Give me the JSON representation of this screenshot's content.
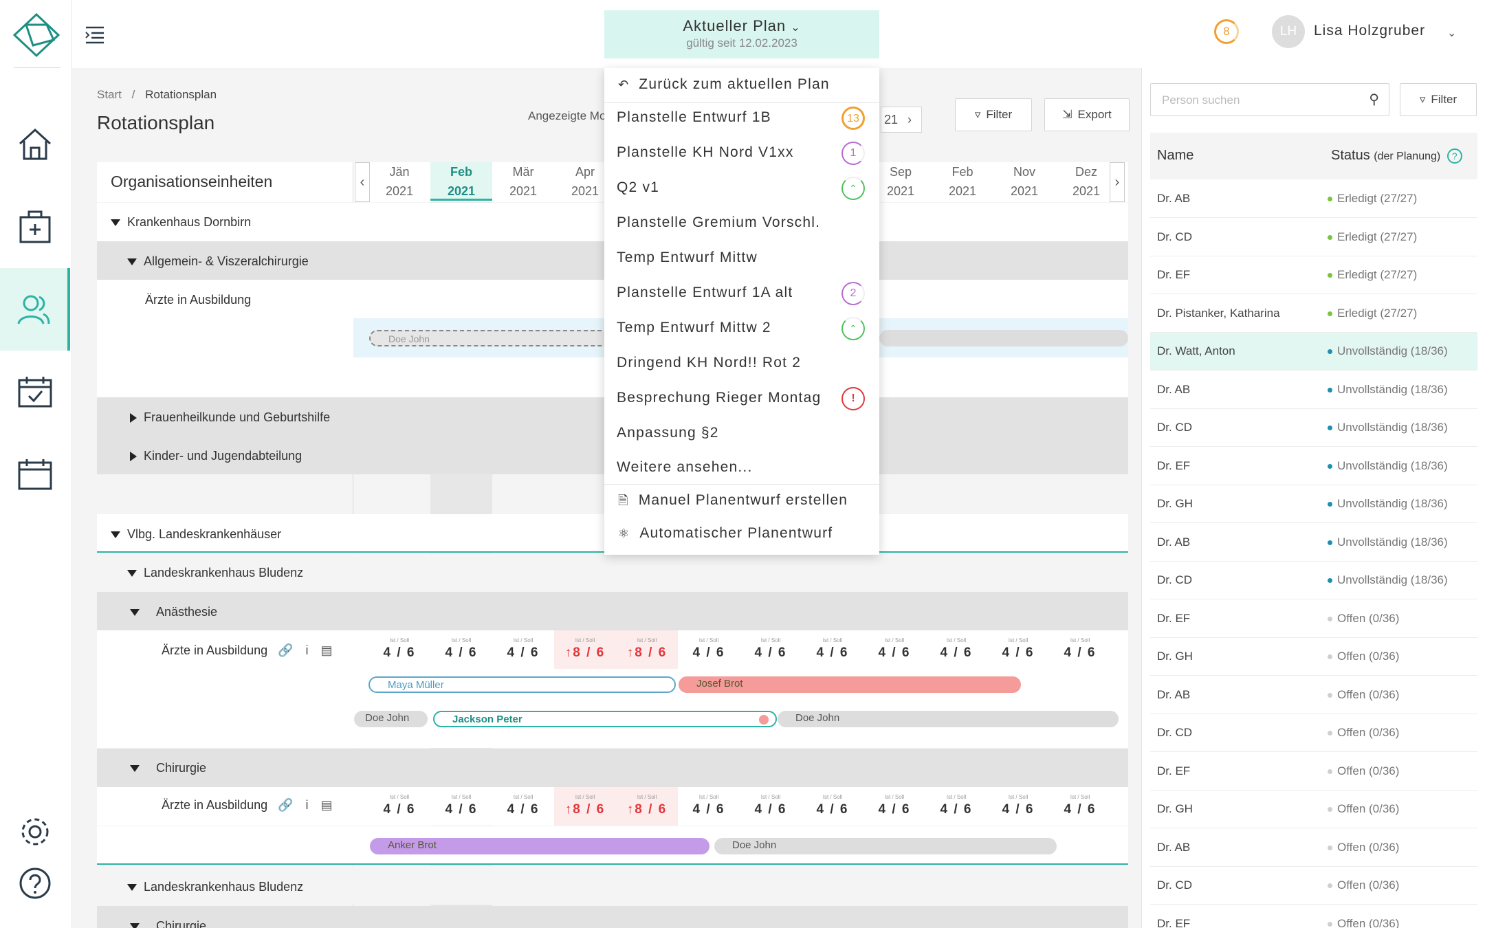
{
  "topbar": {
    "plan_title": "Aktueller Plan",
    "plan_sub": "gültig seit 12.02.2023",
    "notif_count": "8",
    "avatar": "LH",
    "user": "Lisa Holzgruber"
  },
  "dropdown": {
    "back": "Zurück zum aktuellen Plan",
    "items": [
      {
        "label": "Planstelle Entwurf 1B",
        "badge": "13",
        "badge_type": "orange"
      },
      {
        "label": "Planstelle KH Nord V1xx",
        "badge": "1",
        "badge_type": "purple"
      },
      {
        "label": "Q2 v1",
        "badge": "",
        "badge_type": "green"
      },
      {
        "label": "Planstelle Gremium Vorschl.",
        "badge": "",
        "badge_type": "none"
      },
      {
        "label": "Temp Entwurf Mittw",
        "badge": "",
        "badge_type": "none"
      },
      {
        "label": "Planstelle Entwurf 1A alt",
        "badge": "2",
        "badge_type": "purple"
      },
      {
        "label": "Temp Entwurf Mittw 2",
        "badge": "",
        "badge_type": "green"
      },
      {
        "label": "Dringend KH Nord!! Rot 2",
        "badge": "",
        "badge_type": "none"
      },
      {
        "label": "Besprechung Rieger Montag",
        "badge": "!",
        "badge_type": "red"
      },
      {
        "label": "Anpassung §2",
        "badge": "",
        "badge_type": "none"
      }
    ],
    "more": "Weitere ansehen...",
    "manual": "Manuel Planentwurf erstellen",
    "auto": "Automatischer Planentwurf"
  },
  "main": {
    "breadcrumb_start": "Start",
    "breadcrumb_sep": "/",
    "breadcrumb_current": "Rotationsplan",
    "title": "Rotationsplan",
    "shown_label": "Angezeigte Mo",
    "date_fragment": "21",
    "filter": "Filter",
    "export": "Export",
    "org_header": "Organisationseinheiten",
    "months": [
      {
        "m": "Jän",
        "y": "2021"
      },
      {
        "m": "Feb",
        "y": "2021"
      },
      {
        "m": "Mär",
        "y": "2021"
      },
      {
        "m": "Apr",
        "y": "2021"
      },
      {
        "m": "Sep",
        "y": "2021"
      },
      {
        "m": "Feb",
        "y": "2021"
      },
      {
        "m": "Nov",
        "y": "2021"
      },
      {
        "m": "Dez",
        "y": "2021"
      }
    ],
    "tree": {
      "kh_dornbirn": "Krankenhaus Dornbirn",
      "allg": "Allgemein- & Viszeralchirurgie",
      "aerzte": "Ärzte in Ausbildung",
      "frauen": "Frauenheilkunde und Geburtshilfe",
      "kinder": "Kinder- und Jugendabteilung",
      "vlbg": "Vlbg. Landeskrankenhäuser",
      "bludenz": "Landeskrankenhaus Bludenz",
      "anaest": "Anästhesie",
      "aerzte2": "Ärzte in Ausbildung",
      "chir": "Chirurgie",
      "aerzte3": "Ärzte in Ausbildung",
      "bludenz2": "Landeskrankenhaus Bludenz",
      "chir2": "Chirurgie"
    },
    "istsoll": "Ist / Soll",
    "cells": [
      "4 / 6",
      "4 / 6",
      "4 / 6",
      "8 / 6",
      "8 / 6",
      "4 / 6",
      "4 / 6",
      "4 / 6",
      "4 / 6",
      "4 / 6",
      "4 / 6",
      "4 / 6"
    ],
    "bars": {
      "doe1": "Doe John",
      "maya": "Maya Müller",
      "josef": "Josef Brot",
      "doe2": "Doe John",
      "jackson": "Jackson Peter",
      "doe3": "Doe John",
      "anker": "Anker Brot",
      "doe4": "Doe John"
    }
  },
  "right": {
    "search_placeholder": "Person suchen",
    "filter": "Filter",
    "col_name": "Name",
    "col_status": "Status",
    "col_status_sub": "(der Planung)",
    "rows": [
      {
        "name": "Dr. AB",
        "status": "Erledigt (27/27)",
        "kind": "done"
      },
      {
        "name": "Dr. CD",
        "status": "Erledigt (27/27)",
        "kind": "done"
      },
      {
        "name": "Dr. EF",
        "status": "Erledigt (27/27)",
        "kind": "done"
      },
      {
        "name": "Dr. Pistanker, Katharina",
        "status": "Erledigt (27/27)",
        "kind": "done"
      },
      {
        "name": "Dr. Watt, Anton",
        "status": "Unvollständig (18/36)",
        "kind": "partial"
      },
      {
        "name": "Dr. AB",
        "status": "Unvollständig (18/36)",
        "kind": "partial"
      },
      {
        "name": "Dr. CD",
        "status": "Unvollständig (18/36)",
        "kind": "partial"
      },
      {
        "name": "Dr. EF",
        "status": "Unvollständig (18/36)",
        "kind": "partial"
      },
      {
        "name": "Dr. GH",
        "status": "Unvollständig (18/36)",
        "kind": "partial"
      },
      {
        "name": "Dr. AB",
        "status": "Unvollständig (18/36)",
        "kind": "partial"
      },
      {
        "name": "Dr. CD",
        "status": "Unvollständig (18/36)",
        "kind": "partial"
      },
      {
        "name": "Dr. EF",
        "status": "Offen (0/36)",
        "kind": "open"
      },
      {
        "name": "Dr. GH",
        "status": "Offen (0/36)",
        "kind": "open"
      },
      {
        "name": "Dr. AB",
        "status": "Offen (0/36)",
        "kind": "open"
      },
      {
        "name": "Dr. CD",
        "status": "Offen (0/36)",
        "kind": "open"
      },
      {
        "name": "Dr. EF",
        "status": "Offen (0/36)",
        "kind": "open"
      },
      {
        "name": "Dr. GH",
        "status": "Offen (0/36)",
        "kind": "open"
      },
      {
        "name": "Dr. AB",
        "status": "Offen (0/36)",
        "kind": "open"
      },
      {
        "name": "Dr. CD",
        "status": "Offen (0/36)",
        "kind": "open"
      },
      {
        "name": "Dr. EF",
        "status": "Offen (0/36)",
        "kind": "open"
      }
    ]
  },
  "colors": {
    "accent": "#2bb3a3",
    "done": "#7dc243",
    "partial": "#1f8fb0",
    "open": "#cfcfcf",
    "warn": "#e2363b",
    "orange": "#f0a030",
    "purple": "#b86bd0"
  }
}
